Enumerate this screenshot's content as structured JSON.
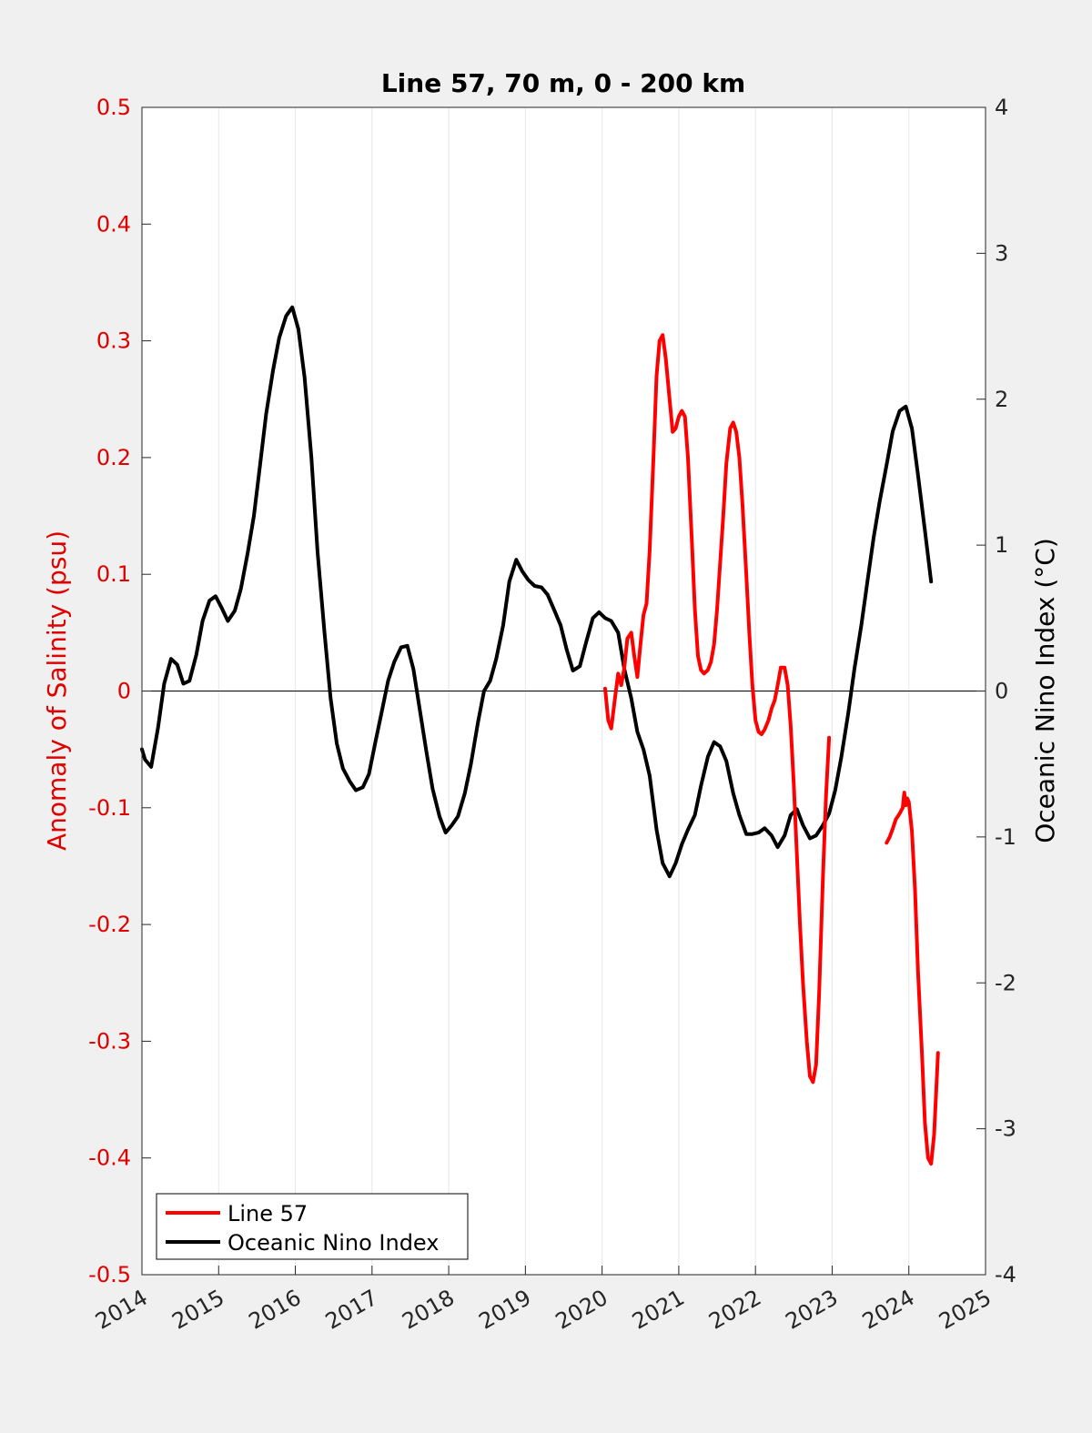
{
  "chart_data": {
    "type": "line",
    "title": "Line 57, 70 m, 0 - 200 km",
    "xlabel": "",
    "ylabel_left": "Anomaly of Salinity (psu)",
    "ylabel_right": "Oceanic Nino Index (°C)",
    "xlim": [
      2014,
      2025
    ],
    "ylim_left": [
      -0.5,
      0.5
    ],
    "ylim_right": [
      -4,
      4
    ],
    "x_ticks": [
      "2014",
      "2015",
      "2016",
      "2017",
      "2018",
      "2019",
      "2020",
      "2021",
      "2022",
      "2023",
      "2024",
      "2025"
    ],
    "y_ticks_left": [
      "0.5",
      "0.4",
      "0.3",
      "0.2",
      "0.1",
      "0",
      "-0.1",
      "-0.2",
      "-0.3",
      "-0.4",
      "-0.5"
    ],
    "y_ticks_right": [
      "4",
      "3",
      "2",
      "1",
      "0",
      "-1",
      "-2",
      "-3",
      "-4"
    ],
    "grid": "vertical",
    "zero_line": true,
    "legend_placement": "bottom-left",
    "colors": {
      "line57": "#ff0000",
      "oni": "#000000",
      "left_axis": "#e00000",
      "plot_bg": "#ffffff",
      "figure_bg": "#f0f0f0"
    },
    "series": [
      {
        "name": "Line 57",
        "axis": "left",
        "color": "#ff0000",
        "segments": [
          [
            [
              2020.04,
              0.002
            ],
            [
              2020.08,
              -0.025
            ],
            [
              2020.12,
              -0.032
            ],
            [
              2020.17,
              -0.005
            ],
            [
              2020.21,
              0.015
            ],
            [
              2020.25,
              0.005
            ],
            [
              2020.29,
              0.02
            ],
            [
              2020.33,
              0.045
            ],
            [
              2020.38,
              0.05
            ],
            [
              2020.42,
              0.03
            ],
            [
              2020.46,
              0.012
            ],
            [
              2020.5,
              0.04
            ],
            [
              2020.54,
              0.065
            ],
            [
              2020.58,
              0.075
            ],
            [
              2020.62,
              0.12
            ],
            [
              2020.67,
              0.2
            ],
            [
              2020.71,
              0.27
            ],
            [
              2020.75,
              0.3
            ],
            [
              2020.79,
              0.305
            ],
            [
              2020.83,
              0.285
            ],
            [
              2020.88,
              0.25
            ],
            [
              2020.92,
              0.222
            ],
            [
              2020.96,
              0.225
            ],
            [
              2021.0,
              0.235
            ],
            [
              2021.04,
              0.24
            ],
            [
              2021.08,
              0.235
            ],
            [
              2021.12,
              0.2
            ],
            [
              2021.17,
              0.13
            ],
            [
              2021.21,
              0.07
            ],
            [
              2021.25,
              0.03
            ],
            [
              2021.29,
              0.018
            ],
            [
              2021.33,
              0.015
            ],
            [
              2021.38,
              0.018
            ],
            [
              2021.42,
              0.025
            ],
            [
              2021.46,
              0.04
            ],
            [
              2021.5,
              0.07
            ],
            [
              2021.54,
              0.11
            ],
            [
              2021.58,
              0.15
            ],
            [
              2021.62,
              0.195
            ],
            [
              2021.67,
              0.225
            ],
            [
              2021.71,
              0.23
            ],
            [
              2021.75,
              0.222
            ],
            [
              2021.79,
              0.2
            ],
            [
              2021.83,
              0.16
            ],
            [
              2021.88,
              0.1
            ],
            [
              2021.92,
              0.05
            ],
            [
              2021.96,
              0.005
            ],
            [
              2022.0,
              -0.025
            ],
            [
              2022.04,
              -0.035
            ],
            [
              2022.08,
              -0.037
            ],
            [
              2022.12,
              -0.033
            ],
            [
              2022.17,
              -0.025
            ],
            [
              2022.21,
              -0.015
            ],
            [
              2022.25,
              -0.008
            ],
            [
              2022.29,
              0.005
            ],
            [
              2022.33,
              0.02
            ],
            [
              2022.38,
              0.02
            ],
            [
              2022.42,
              0.005
            ],
            [
              2022.46,
              -0.03
            ],
            [
              2022.5,
              -0.08
            ],
            [
              2022.54,
              -0.14
            ],
            [
              2022.58,
              -0.2
            ],
            [
              2022.62,
              -0.25
            ],
            [
              2022.67,
              -0.3
            ],
            [
              2022.71,
              -0.33
            ],
            [
              2022.75,
              -0.335
            ],
            [
              2022.79,
              -0.32
            ],
            [
              2022.83,
              -0.26
            ],
            [
              2022.88,
              -0.16
            ],
            [
              2022.92,
              -0.09
            ],
            [
              2022.96,
              -0.04
            ]
          ],
          [
            [
              2023.71,
              -0.13
            ],
            [
              2023.75,
              -0.125
            ],
            [
              2023.79,
              -0.118
            ],
            [
              2023.83,
              -0.11
            ],
            [
              2023.88,
              -0.105
            ],
            [
              2023.92,
              -0.1
            ],
            [
              2023.94,
              -0.087
            ],
            [
              2023.96,
              -0.098
            ],
            [
              2023.98,
              -0.092
            ],
            [
              2024.0,
              -0.095
            ],
            [
              2024.04,
              -0.12
            ],
            [
              2024.08,
              -0.17
            ],
            [
              2024.12,
              -0.24
            ],
            [
              2024.17,
              -0.31
            ],
            [
              2024.21,
              -0.37
            ],
            [
              2024.25,
              -0.4
            ],
            [
              2024.29,
              -0.405
            ],
            [
              2024.33,
              -0.38
            ],
            [
              2024.38,
              -0.31
            ]
          ]
        ]
      },
      {
        "name": "Oceanic Nino Index",
        "axis": "right",
        "color": "#000000",
        "points": [
          [
            2014.0,
            -0.4
          ],
          [
            2014.04,
            -0.47
          ],
          [
            2014.12,
            -0.52
          ],
          [
            2014.21,
            -0.25
          ],
          [
            2014.29,
            0.05
          ],
          [
            2014.38,
            0.22
          ],
          [
            2014.46,
            0.18
          ],
          [
            2014.54,
            0.05
          ],
          [
            2014.62,
            0.07
          ],
          [
            2014.71,
            0.25
          ],
          [
            2014.79,
            0.48
          ],
          [
            2014.88,
            0.62
          ],
          [
            2014.96,
            0.65
          ],
          [
            2015.04,
            0.57
          ],
          [
            2015.12,
            0.48
          ],
          [
            2015.21,
            0.55
          ],
          [
            2015.29,
            0.7
          ],
          [
            2015.38,
            0.95
          ],
          [
            2015.46,
            1.2
          ],
          [
            2015.54,
            1.55
          ],
          [
            2015.62,
            1.9
          ],
          [
            2015.71,
            2.2
          ],
          [
            2015.79,
            2.42
          ],
          [
            2015.88,
            2.57
          ],
          [
            2015.96,
            2.63
          ],
          [
            2016.04,
            2.48
          ],
          [
            2016.12,
            2.15
          ],
          [
            2016.21,
            1.6
          ],
          [
            2016.29,
            0.95
          ],
          [
            2016.38,
            0.4
          ],
          [
            2016.46,
            -0.05
          ],
          [
            2016.54,
            -0.36
          ],
          [
            2016.62,
            -0.53
          ],
          [
            2016.71,
            -0.62
          ],
          [
            2016.79,
            -0.68
          ],
          [
            2016.88,
            -0.66
          ],
          [
            2016.96,
            -0.57
          ],
          [
            2017.04,
            -0.36
          ],
          [
            2017.12,
            -0.16
          ],
          [
            2017.21,
            0.07
          ],
          [
            2017.29,
            0.2
          ],
          [
            2017.38,
            0.3
          ],
          [
            2017.46,
            0.31
          ],
          [
            2017.54,
            0.15
          ],
          [
            2017.62,
            -0.12
          ],
          [
            2017.71,
            -0.42
          ],
          [
            2017.79,
            -0.67
          ],
          [
            2017.88,
            -0.86
          ],
          [
            2017.96,
            -0.97
          ],
          [
            2018.04,
            -0.92
          ],
          [
            2018.12,
            -0.86
          ],
          [
            2018.21,
            -0.7
          ],
          [
            2018.29,
            -0.5
          ],
          [
            2018.38,
            -0.22
          ],
          [
            2018.46,
            0.0
          ],
          [
            2018.54,
            0.07
          ],
          [
            2018.62,
            0.22
          ],
          [
            2018.71,
            0.45
          ],
          [
            2018.79,
            0.75
          ],
          [
            2018.88,
            0.9
          ],
          [
            2018.96,
            0.82
          ],
          [
            2019.04,
            0.76
          ],
          [
            2019.12,
            0.72
          ],
          [
            2019.21,
            0.71
          ],
          [
            2019.29,
            0.66
          ],
          [
            2019.38,
            0.55
          ],
          [
            2019.46,
            0.45
          ],
          [
            2019.54,
            0.28
          ],
          [
            2019.62,
            0.14
          ],
          [
            2019.71,
            0.17
          ],
          [
            2019.79,
            0.33
          ],
          [
            2019.88,
            0.5
          ],
          [
            2019.96,
            0.54
          ],
          [
            2020.04,
            0.5
          ],
          [
            2020.12,
            0.48
          ],
          [
            2020.21,
            0.4
          ],
          [
            2020.29,
            0.15
          ],
          [
            2020.38,
            -0.05
          ],
          [
            2020.46,
            -0.28
          ],
          [
            2020.54,
            -0.4
          ],
          [
            2020.62,
            -0.58
          ],
          [
            2020.71,
            -0.95
          ],
          [
            2020.79,
            -1.18
          ],
          [
            2020.88,
            -1.27
          ],
          [
            2020.96,
            -1.18
          ],
          [
            2021.04,
            -1.05
          ],
          [
            2021.12,
            -0.95
          ],
          [
            2021.21,
            -0.85
          ],
          [
            2021.29,
            -0.65
          ],
          [
            2021.38,
            -0.45
          ],
          [
            2021.46,
            -0.35
          ],
          [
            2021.54,
            -0.38
          ],
          [
            2021.62,
            -0.48
          ],
          [
            2021.71,
            -0.7
          ],
          [
            2021.79,
            -0.85
          ],
          [
            2021.88,
            -0.98
          ],
          [
            2021.96,
            -0.98
          ],
          [
            2022.04,
            -0.97
          ],
          [
            2022.12,
            -0.94
          ],
          [
            2022.21,
            -0.99
          ],
          [
            2022.29,
            -1.07
          ],
          [
            2022.38,
            -0.99
          ],
          [
            2022.46,
            -0.85
          ],
          [
            2022.54,
            -0.81
          ],
          [
            2022.62,
            -0.92
          ],
          [
            2022.71,
            -1.01
          ],
          [
            2022.79,
            -0.99
          ],
          [
            2022.88,
            -0.92
          ],
          [
            2022.96,
            -0.84
          ],
          [
            2023.04,
            -0.68
          ],
          [
            2023.12,
            -0.45
          ],
          [
            2023.21,
            -0.15
          ],
          [
            2023.29,
            0.15
          ],
          [
            2023.38,
            0.45
          ],
          [
            2023.46,
            0.75
          ],
          [
            2023.54,
            1.05
          ],
          [
            2023.62,
            1.3
          ],
          [
            2023.71,
            1.55
          ],
          [
            2023.79,
            1.78
          ],
          [
            2023.88,
            1.92
          ],
          [
            2023.96,
            1.95
          ],
          [
            2024.04,
            1.8
          ],
          [
            2024.12,
            1.48
          ],
          [
            2024.21,
            1.1
          ],
          [
            2024.29,
            0.75
          ]
        ]
      }
    ]
  }
}
